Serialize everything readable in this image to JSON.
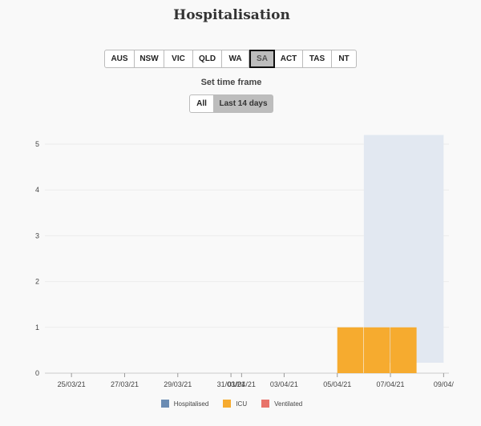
{
  "page": {
    "title": "Hospitalisation"
  },
  "regions": [
    {
      "label": "AUS",
      "selected": false
    },
    {
      "label": "NSW",
      "selected": false
    },
    {
      "label": "VIC",
      "selected": false
    },
    {
      "label": "QLD",
      "selected": false
    },
    {
      "label": "WA",
      "selected": false
    },
    {
      "label": "SA",
      "selected": true
    },
    {
      "label": "ACT",
      "selected": false
    },
    {
      "label": "TAS",
      "selected": false
    },
    {
      "label": "NT",
      "selected": false
    }
  ],
  "timeframe": {
    "label": "Set time frame",
    "all_label": "All",
    "last14_label": "Last 14 days",
    "selected": "Last 14 days"
  },
  "colors": {
    "hospitalised": "#6b8cb3",
    "hospitalised_area": "#e2e8f1",
    "icu": "#f6ab2f",
    "ventilated": "#e8736a"
  },
  "chart_data": {
    "type": "bar",
    "title": "",
    "xlabel": "",
    "ylabel": "",
    "ylim": [
      0,
      5
    ],
    "yticks": [
      "0",
      "1",
      "2",
      "3",
      "4",
      "5"
    ],
    "x_ticks": [
      "25/03/21",
      "27/03/21",
      "29/03/21",
      "31/03/21",
      "01/04/21",
      "03/04/21",
      "05/04/21",
      "07/04/21",
      "09/04/"
    ],
    "x_tick_positions_days": [
      1,
      3,
      5,
      7,
      7.4,
      9,
      11,
      13,
      15
    ],
    "x_range_days": [
      0,
      15.2
    ],
    "start_date": "24/03/21",
    "series": [
      {
        "name": "Hospitalised",
        "color_key": "hospitalised",
        "segments": [
          {
            "x0": 12.0,
            "x1": 15.0,
            "value": 5.2
          }
        ]
      },
      {
        "name": "ICU",
        "color_key": "icu",
        "bars": [
          {
            "x0": 11.0,
            "x1": 12.0,
            "value": 1
          },
          {
            "x0": 12.0,
            "x1": 13.0,
            "value": 1
          },
          {
            "x0": 13.0,
            "x1": 14.0,
            "value": 1
          }
        ]
      },
      {
        "name": "Ventilated",
        "color_key": "ventilated",
        "bars": []
      }
    ],
    "legend": [
      "Hospitalised",
      "ICU",
      "Ventilated"
    ]
  }
}
